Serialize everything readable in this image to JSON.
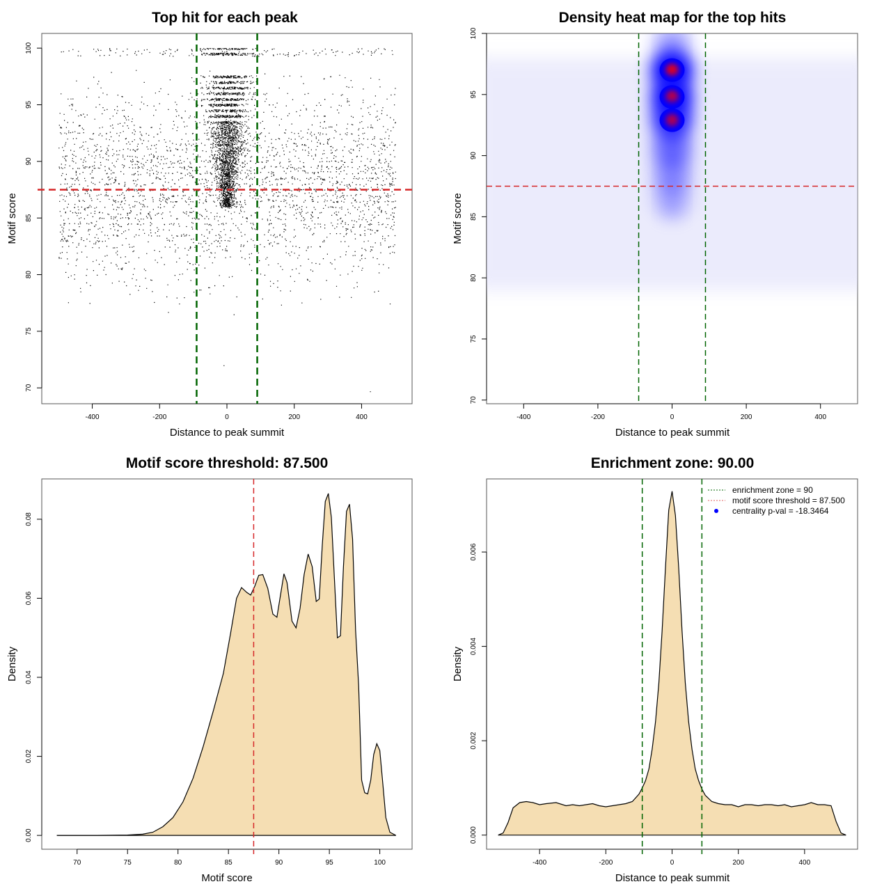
{
  "chart_data": [
    {
      "id": "scatter",
      "type": "scatter",
      "title": "Top hit for each peak",
      "xlabel": "Distance to peak summit",
      "ylabel": "Motif score",
      "xlim": [
        -550,
        550
      ],
      "ylim": [
        68.6,
        101.3
      ],
      "xticks": [
        -400,
        -200,
        0,
        200,
        400
      ],
      "yticks": [
        70,
        75,
        80,
        85,
        90,
        95,
        100
      ],
      "point_color": "#000000",
      "points_summary": {
        "x_range": [
          -500,
          500
        ],
        "y_range": [
          69.7,
          100
        ],
        "dense_center_x": 0,
        "dense_center_spread": 60,
        "score_bands": [
          99.5,
          97,
          95,
          93,
          91,
          89,
          87,
          85,
          83,
          81
        ],
        "outliers": [
          [
            -10,
            72.0
          ],
          [
            425,
            69.7
          ],
          [
            20,
            76.5
          ],
          [
            -175,
            76.7
          ]
        ]
      },
      "vlines": {
        "values": [
          -90,
          90
        ],
        "color": "#006400",
        "style": "dashed"
      },
      "hline": {
        "value": 87.5,
        "color": "#d62728",
        "style": "dashed"
      }
    },
    {
      "id": "heatmap",
      "type": "heatmap",
      "title": "Density heat map for the top hits",
      "xlabel": "Distance to peak summit",
      "ylabel": "Motif score",
      "xlim": [
        -500,
        500
      ],
      "ylim": [
        69.7,
        100
      ],
      "xticks": [
        -400,
        -200,
        0,
        200,
        400
      ],
      "yticks": [
        70,
        75,
        80,
        85,
        90,
        95,
        100
      ],
      "colorscale": [
        "#ffffff",
        "#0000ff",
        "#ff0000"
      ],
      "hotspots": [
        {
          "x": 0,
          "y": 97.0,
          "intensity": 1.0
        },
        {
          "x": 0,
          "y": 94.8,
          "intensity": 0.85
        },
        {
          "x": 0,
          "y": 92.9,
          "intensity": 0.7
        },
        {
          "x": 0,
          "y": 90.6,
          "intensity": 0.4
        },
        {
          "x": 0,
          "y": 88.5,
          "intensity": 0.25
        },
        {
          "x": 0,
          "y": 86.5,
          "intensity": 0.15
        },
        {
          "x": 0,
          "y": 99.3,
          "intensity": 0.2
        }
      ],
      "background_band": {
        "y_range": [
          79,
          98
        ],
        "intensity": 0.08
      },
      "vlines": {
        "values": [
          -90,
          90
        ],
        "color": "#006400",
        "style": "dashed"
      },
      "hline": {
        "value": 87.5,
        "color": "#d62728",
        "style": "dashed"
      }
    },
    {
      "id": "score-density",
      "type": "area",
      "title": "Motif score threshold: 87.500",
      "xlabel": "Motif score",
      "ylabel": "Density",
      "xlim": [
        66.5,
        103.2
      ],
      "ylim": [
        -0.0035,
        0.0902
      ],
      "xticks": [
        70,
        75,
        80,
        85,
        90,
        95,
        100
      ],
      "yticks": [
        0.0,
        0.02,
        0.04,
        0.06,
        0.08
      ],
      "ytick_labels": [
        "0.00",
        "0.02",
        "0.04",
        "0.06",
        "0.08"
      ],
      "fill": "#f5deb3",
      "x": [
        68.0,
        72.0,
        75.0,
        76.5,
        77.5,
        78.5,
        79.5,
        80.5,
        81.5,
        82.5,
        83.5,
        84.5,
        85.2,
        85.8,
        86.3,
        86.8,
        87.2,
        87.6,
        88.0,
        88.4,
        88.9,
        89.4,
        89.8,
        90.2,
        90.5,
        90.8,
        91.3,
        91.7,
        92.1,
        92.5,
        92.9,
        93.3,
        93.7,
        94.0,
        94.3,
        94.6,
        94.9,
        95.2,
        95.5,
        95.8,
        96.1,
        96.4,
        96.7,
        97.0,
        97.3,
        97.6,
        97.9,
        98.2,
        98.5,
        98.8,
        99.1,
        99.4,
        99.7,
        100.0,
        100.3,
        100.6,
        101.0,
        101.6
      ],
      "values": [
        0.0,
        0.0,
        0.0001,
        0.0003,
        0.0008,
        0.0022,
        0.0045,
        0.0085,
        0.0145,
        0.0225,
        0.0315,
        0.041,
        0.051,
        0.06,
        0.0627,
        0.0615,
        0.0608,
        0.063,
        0.0658,
        0.066,
        0.0625,
        0.056,
        0.0552,
        0.0615,
        0.0662,
        0.064,
        0.0542,
        0.0525,
        0.0575,
        0.066,
        0.0712,
        0.068,
        0.0592,
        0.0598,
        0.0735,
        0.0845,
        0.0865,
        0.0805,
        0.065,
        0.05,
        0.0505,
        0.068,
        0.082,
        0.0838,
        0.075,
        0.052,
        0.038,
        0.014,
        0.0108,
        0.0105,
        0.014,
        0.0205,
        0.0232,
        0.0215,
        0.013,
        0.0045,
        0.0008,
        0.0
      ]
    },
    {
      "id": "position-density",
      "type": "area",
      "title": "Enrichment zone: 90.00",
      "xlabel": "Distance to peak summit",
      "ylabel": "Density",
      "xlim": [
        -560,
        560
      ],
      "ylim": [
        -0.0003,
        0.00755
      ],
      "xticks": [
        -400,
        -200,
        0,
        200,
        400
      ],
      "yticks": [
        0.0,
        0.002,
        0.004,
        0.006
      ],
      "ytick_labels": [
        "0.000",
        "0.002",
        "0.004",
        "0.006"
      ],
      "fill": "#f5deb3",
      "x": [
        -525,
        -510,
        -495,
        -480,
        -460,
        -440,
        -420,
        -400,
        -380,
        -350,
        -320,
        -300,
        -280,
        -260,
        -240,
        -220,
        -200,
        -180,
        -160,
        -140,
        -120,
        -100,
        -90,
        -80,
        -70,
        -60,
        -50,
        -40,
        -30,
        -20,
        -10,
        0,
        10,
        20,
        30,
        40,
        50,
        60,
        70,
        80,
        90,
        100,
        120,
        140,
        160,
        180,
        200,
        220,
        240,
        260,
        280,
        300,
        320,
        340,
        360,
        380,
        400,
        420,
        440,
        460,
        480,
        495,
        510,
        525
      ],
      "values": [
        0.0,
        0.0002,
        0.0012,
        0.0026,
        0.0031,
        0.0032,
        0.0031,
        0.0029,
        0.003,
        0.0031,
        0.0028,
        0.0029,
        0.0028,
        0.0029,
        0.003,
        0.0028,
        0.0027,
        0.0028,
        0.0029,
        0.003,
        0.0032,
        0.0039,
        0.0045,
        0.0052,
        0.0063,
        0.0082,
        0.0108,
        0.0145,
        0.0195,
        0.0255,
        0.031,
        0.0328,
        0.0305,
        0.0255,
        0.0195,
        0.0145,
        0.0108,
        0.0082,
        0.0063,
        0.0052,
        0.0044,
        0.0038,
        0.0032,
        0.003,
        0.0029,
        0.0029,
        0.0027,
        0.0029,
        0.0029,
        0.0028,
        0.0029,
        0.0029,
        0.0028,
        0.0029,
        0.0027,
        0.0028,
        0.0029,
        0.0031,
        0.0029,
        0.0029,
        0.0028,
        0.0013,
        0.0002,
        0.0
      ],
      "values_scale": 0.2222,
      "vlines": {
        "values": [
          -90,
          90
        ],
        "color": "#006400",
        "style": "dashed"
      },
      "legend": {
        "position": "top-right",
        "entries": [
          {
            "label": "enrichment zone = 90",
            "color": "#006400",
            "style": "dotted-line"
          },
          {
            "label": "motif score threshold = 87.500",
            "color": "#e06060",
            "style": "dotted-line"
          },
          {
            "label": "centrality p-val = -18.3464",
            "color": "#0000ff",
            "style": "point"
          }
        ]
      }
    }
  ]
}
